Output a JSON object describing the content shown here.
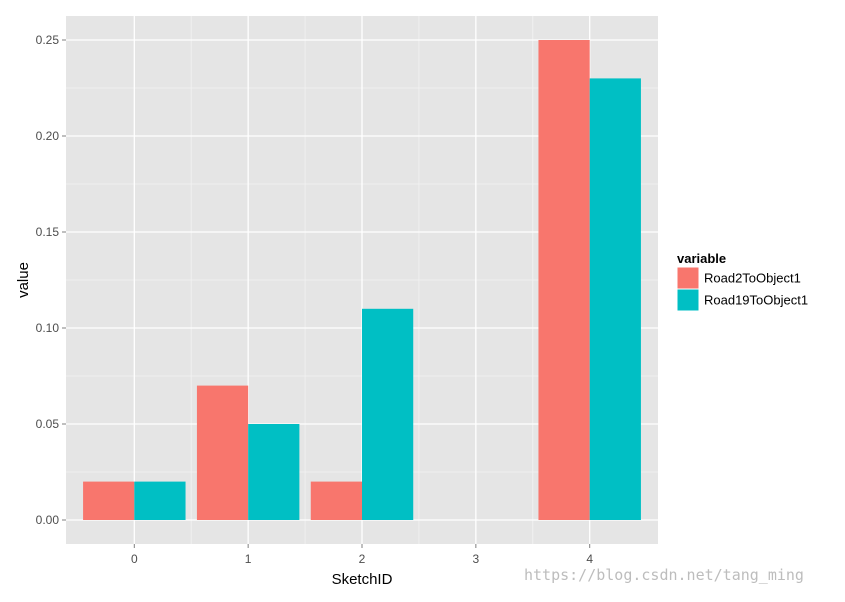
{
  "chart_data": {
    "type": "bar",
    "categories": [
      "0",
      "1",
      "2",
      "3",
      "4"
    ],
    "series": [
      {
        "name": "Road2ToObject1",
        "color": "#F8766D",
        "values": [
          0.02,
          0.07,
          0.02,
          0,
          0.25
        ]
      },
      {
        "name": "Road19ToObject1",
        "color": "#00BFC4",
        "values": [
          0.02,
          0.05,
          0.11,
          0,
          0.23
        ]
      }
    ],
    "xlabel": "SketchID",
    "ylabel": "value",
    "ylim": [
      -0.0125,
      0.2625
    ],
    "yticks": [
      0.0,
      0.05,
      0.1,
      0.15,
      0.2,
      0.25
    ],
    "ytick_labels": [
      "0.00",
      "0.05",
      "0.10",
      "0.15",
      "0.20",
      "0.25"
    ],
    "legend": {
      "title": "variable",
      "position": "right"
    },
    "grid": true,
    "panel_background": "#E5E5E5"
  },
  "watermark": "https://blog.csdn.net/tang_ming"
}
